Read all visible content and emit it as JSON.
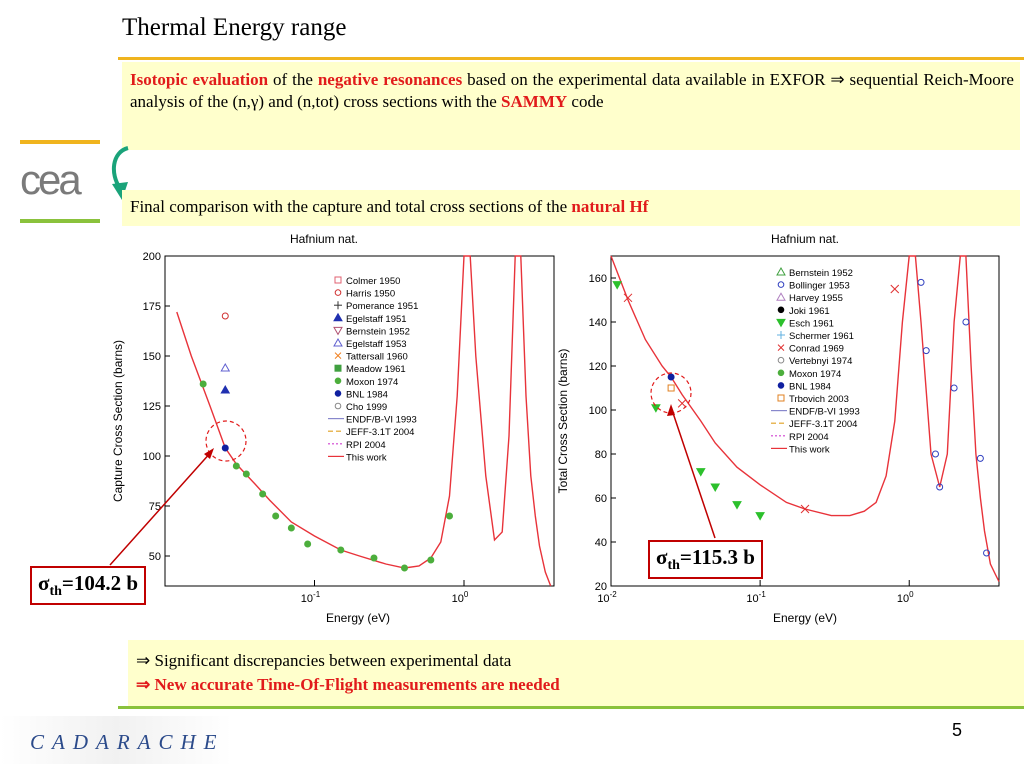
{
  "title": "Thermal Energy range",
  "box1": {
    "p1": "Isotopic evaluation",
    "p2": " of the ",
    "p3": "negative resonances",
    "p4": " based on the experimental data available  in EXFOR ⇒ sequential Reich-Moore analysis of the (n,γ) and (n,tot) cross sections with the ",
    "p5": "SAMMY",
    "p6": " code"
  },
  "box2": {
    "p1": "Final comparison with the capture and total cross sections of the ",
    "p2": "natural Hf"
  },
  "logo_text": "cea",
  "footer_logo": "CADARACHE",
  "page_number": "5",
  "conclusions": {
    "line1": "⇒ Significant discrepancies between experimental data",
    "line2": "⇒ New accurate Time-Of-Flight measurements are needed"
  },
  "sigma_left": {
    "sym": "σ",
    "sub": "th",
    "value": "=104.2 b"
  },
  "sigma_right": {
    "sym": "σ",
    "sub": "th",
    "value": "=115.3 b"
  },
  "colors": {
    "highlight": "#e11b1b",
    "box_bg": "#ffffcc",
    "gold": "#f0b41e",
    "green": "#8ac23c",
    "curve": "#e8333a"
  },
  "chart_data": [
    {
      "type": "scatter",
      "title": "Hafnium nat.",
      "xlabel": "Energy (eV)",
      "ylabel": "Capture Cross Section (barns)",
      "xscale": "log",
      "xticks": [
        "10^-1",
        "10^0"
      ],
      "yticks": [
        "50",
        "75",
        "100",
        "125",
        "150",
        "175",
        "200"
      ],
      "ylim": [
        35,
        200
      ],
      "legend": [
        "Colmer 1950",
        "Harris 1950",
        "Pomerance 1951",
        "Egelstaff 1951",
        "Bernstein 1952",
        "Egelstaff 1953",
        "Tattersall 1960",
        "Meadow 1961",
        "Moxon 1974",
        "BNL 1984",
        "Cho 1999",
        "ENDF/B-VI 1993",
        "JEFF-3.1T 2004",
        "RPI 2004",
        "This work"
      ],
      "series": [
        {
          "name": "This work",
          "x": [
            0.012,
            0.015,
            0.02,
            0.0253,
            0.03,
            0.04,
            0.05,
            0.07,
            0.1,
            0.15,
            0.2,
            0.3,
            0.4,
            0.5,
            0.6,
            0.7,
            0.8,
            0.9,
            1.0,
            1.1,
            1.2,
            1.4,
            1.6,
            1.8,
            2.0,
            2.2,
            2.4,
            2.6,
            2.8,
            3.0,
            3.2,
            3.5,
            3.8
          ],
          "y": [
            172,
            150,
            125,
            104,
            96,
            86,
            78,
            67,
            60,
            53,
            50,
            46,
            44,
            45,
            49,
            57,
            80,
            130,
            200,
            200,
            150,
            90,
            58,
            62,
            110,
            200,
            200,
            130,
            90,
            70,
            55,
            42,
            35
          ]
        },
        {
          "name": "Moxon 1974",
          "x": [
            0.018,
            0.03,
            0.035,
            0.045,
            0.055,
            0.07,
            0.09,
            0.15,
            0.25,
            0.4,
            0.6,
            0.8
          ],
          "y": [
            136,
            95,
            91,
            81,
            70,
            64,
            56,
            53,
            49,
            44,
            48,
            70
          ]
        },
        {
          "name": "Egelstaff 1951",
          "x": [
            0.0253
          ],
          "y": [
            133
          ]
        },
        {
          "name": "Harris 1950",
          "x": [
            0.0253
          ],
          "y": [
            170
          ]
        },
        {
          "name": "Egelstaff 1953",
          "x": [
            0.0253
          ],
          "y": [
            144
          ]
        },
        {
          "name": "BNL 1984",
          "x": [
            0.0253
          ],
          "y": [
            104
          ]
        }
      ]
    },
    {
      "type": "scatter",
      "title": "Hafnium nat.",
      "xlabel": "Energy (eV)",
      "ylabel": "Total Cross Section (barns)",
      "xscale": "log",
      "xticks": [
        "10^-2",
        "10^-1",
        "10^0"
      ],
      "yticks": [
        "20",
        "40",
        "60",
        "80",
        "100",
        "120",
        "140",
        "160"
      ],
      "ylim": [
        20,
        170
      ],
      "legend": [
        "Bernstein 1952",
        "Bollinger 1953",
        "Harvey 1955",
        "Joki 1961",
        "Esch 1961",
        "Schermer 1961",
        "Conrad 1969",
        "Vertebnyi 1974",
        "Moxon 1974",
        "BNL 1984",
        "Trbovich 2003",
        "ENDF/B-VI 1993",
        "JEFF-3.1T 2004",
        "RPI 2004",
        "This work"
      ],
      "series": [
        {
          "name": "This work",
          "x": [
            0.01,
            0.013,
            0.017,
            0.022,
            0.0253,
            0.03,
            0.04,
            0.05,
            0.07,
            0.1,
            0.15,
            0.2,
            0.3,
            0.4,
            0.5,
            0.6,
            0.7,
            0.8,
            0.9,
            1.0,
            1.1,
            1.2,
            1.4,
            1.6,
            1.8,
            2.0,
            2.2,
            2.4,
            2.6,
            2.8,
            3.0,
            3.2,
            3.5,
            3.8,
            4.0
          ],
          "y": [
            170,
            150,
            132,
            120,
            115,
            107,
            95,
            85,
            74,
            66,
            58,
            55,
            52,
            52,
            54,
            58,
            70,
            95,
            140,
            180,
            180,
            140,
            80,
            65,
            80,
            140,
            180,
            180,
            120,
            80,
            60,
            45,
            30,
            25,
            22
          ]
        },
        {
          "name": "Esch 1961",
          "x": [
            0.011,
            0.02,
            0.04,
            0.05,
            0.07,
            0.1
          ],
          "y": [
            157,
            101,
            72,
            65,
            57,
            52
          ]
        },
        {
          "name": "Conrad 1969",
          "x": [
            0.013,
            0.03,
            0.2,
            0.8
          ],
          "y": [
            151,
            103,
            55,
            155
          ]
        },
        {
          "name": "Bollinger 1953",
          "x": [
            1.2,
            1.3,
            1.5,
            1.6,
            2.0,
            2.4,
            3.0,
            3.3
          ],
          "y": [
            158,
            127,
            80,
            65,
            110,
            140,
            78,
            35
          ]
        },
        {
          "name": "BNL 1984",
          "x": [
            0.0253
          ],
          "y": [
            115
          ]
        },
        {
          "name": "Trbovich 2003",
          "x": [
            0.0253
          ],
          "y": [
            110
          ]
        }
      ]
    }
  ]
}
